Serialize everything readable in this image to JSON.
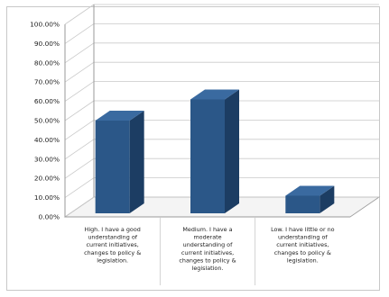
{
  "chart_data": {
    "type": "bar",
    "categories": [
      [
        "High. I have a good",
        "understanding of",
        "current initiatives,",
        "changes to policy &",
        "legislation."
      ],
      [
        "Medium. I have a",
        "moderate",
        "understanding of",
        "current initiatives,",
        "changes to policy &",
        "legislation."
      ],
      [
        "Low. I have little or no",
        "understanding of",
        "current initiatives,",
        "changes to policy &",
        "legislation."
      ]
    ],
    "values": [
      50,
      61,
      11
    ],
    "ylim": [
      0,
      70
    ],
    "yticks": [
      "0.00%",
      "10.00%",
      "20.00%",
      "30.00%",
      "40.00%",
      "50.00%",
      "60.00%",
      "70.00%",
      "80.00%",
      "90.00%",
      "100.00%"
    ],
    "grid": true,
    "legend": "none",
    "colors": {
      "bar_front": "#2b5788",
      "bar_side": "#1c3d63",
      "bar_top": "#3a6aa0"
    }
  }
}
